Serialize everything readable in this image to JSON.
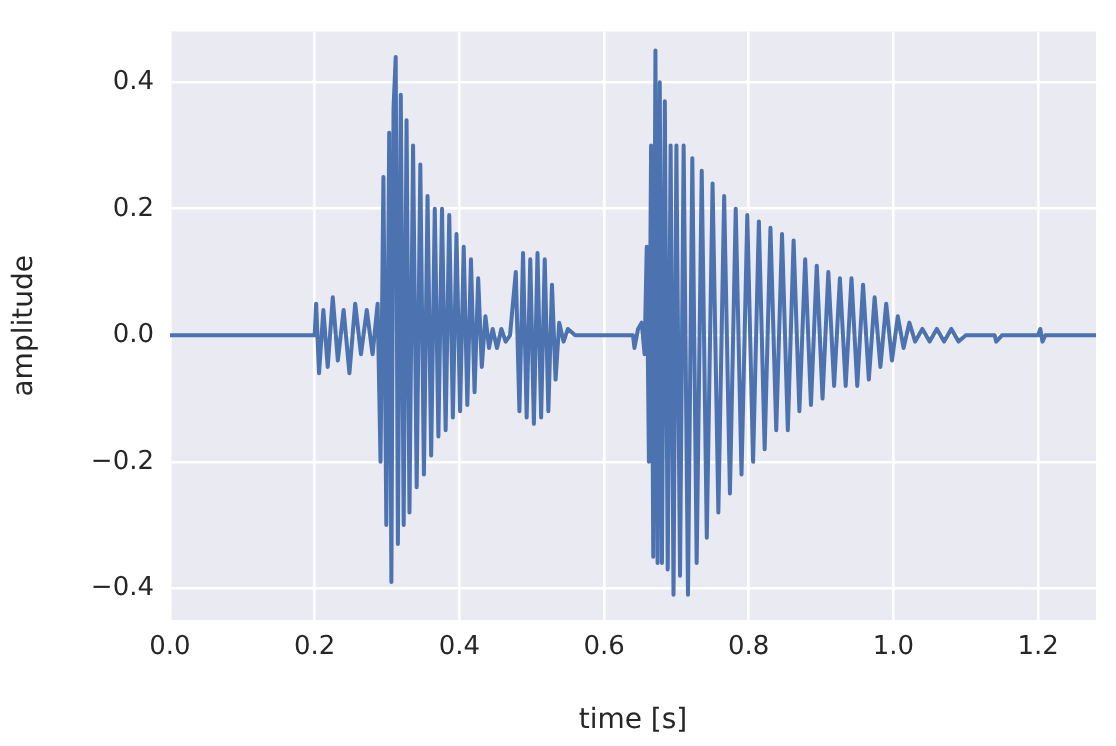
{
  "chart_data": {
    "type": "line",
    "xlabel": "time [s]",
    "ylabel": "amplitude",
    "color": "#4c72b0",
    "grid": true,
    "legend": false,
    "marker": "none",
    "line_style": "solid",
    "xlim": [
      0,
      1.28
    ],
    "ylim": [
      -0.45,
      0.48
    ],
    "xticks": [
      {
        "value": 0,
        "label": "0.0"
      },
      {
        "value": 0.2,
        "label": "0.2"
      },
      {
        "value": 0.4,
        "label": "0.4"
      },
      {
        "value": 0.6,
        "label": "0.6"
      },
      {
        "value": 0.8,
        "label": "0.8"
      },
      {
        "value": 1.0,
        "label": "1.0"
      },
      {
        "value": 1.2,
        "label": "1.2"
      }
    ],
    "yticks": [
      {
        "value": -0.4,
        "label": "−0.4"
      },
      {
        "value": -0.2,
        "label": "−0.2"
      },
      {
        "value": 0,
        "label": "0.0"
      },
      {
        "value": 0.2,
        "label": "0.2"
      },
      {
        "value": 0.4,
        "label": "0.4"
      }
    ],
    "x": [
      0,
      0.2,
      0.202,
      0.206,
      0.212,
      0.218,
      0.225,
      0.232,
      0.24,
      0.248,
      0.256,
      0.264,
      0.272,
      0.28,
      0.287,
      0.291,
      0.295,
      0.299,
      0.303,
      0.306,
      0.309,
      0.312,
      0.315,
      0.319,
      0.323,
      0.327,
      0.331,
      0.336,
      0.341,
      0.346,
      0.351,
      0.356,
      0.361,
      0.366,
      0.371,
      0.376,
      0.381,
      0.386,
      0.391,
      0.396,
      0.401,
      0.406,
      0.411,
      0.416,
      0.421,
      0.426,
      0.431,
      0.436,
      0.441,
      0.446,
      0.452,
      0.458,
      0.464,
      0.47,
      0.478,
      0.483,
      0.488,
      0.493,
      0.498,
      0.503,
      0.508,
      0.513,
      0.518,
      0.523,
      0.528,
      0.533,
      0.538,
      0.544,
      0.55,
      0.56,
      0.64,
      0.642,
      0.647,
      0.652,
      0.656,
      0.659,
      0.662,
      0.665,
      0.668,
      0.671,
      0.674,
      0.677,
      0.68,
      0.684,
      0.688,
      0.692,
      0.696,
      0.7,
      0.705,
      0.71,
      0.716,
      0.722,
      0.728,
      0.735,
      0.742,
      0.75,
      0.758,
      0.766,
      0.774,
      0.782,
      0.79,
      0.798,
      0.806,
      0.814,
      0.822,
      0.83,
      0.838,
      0.846,
      0.854,
      0.862,
      0.87,
      0.878,
      0.886,
      0.894,
      0.902,
      0.91,
      0.918,
      0.926,
      0.934,
      0.942,
      0.95,
      0.958,
      0.966,
      0.974,
      0.982,
      0.99,
      0.998,
      1.006,
      1.014,
      1.022,
      1.03,
      1.04,
      1.05,
      1.06,
      1.07,
      1.08,
      1.09,
      1.1,
      1.14,
      1.142,
      1.15,
      1.2,
      1.203,
      1.206,
      1.21,
      1.28
    ],
    "values": [
      0,
      0,
      0.05,
      -0.06,
      0.04,
      -0.05,
      0.06,
      -0.04,
      0.04,
      -0.06,
      0.05,
      -0.03,
      0.04,
      -0.03,
      0.05,
      -0.2,
      0.25,
      -0.3,
      0.32,
      -0.39,
      0.36,
      0.44,
      -0.33,
      0.38,
      -0.3,
      0.34,
      -0.28,
      0.3,
      -0.24,
      0.27,
      -0.22,
      0.22,
      -0.19,
      0.2,
      -0.16,
      0.2,
      -0.15,
      0.19,
      -0.13,
      0.16,
      -0.12,
      0.14,
      -0.11,
      0.12,
      -0.09,
      0.09,
      -0.05,
      0.03,
      -0.02,
      0.01,
      -0.02,
      0.01,
      -0.01,
      0,
      0.1,
      -0.12,
      0.13,
      -0.13,
      0.12,
      -0.14,
      0.13,
      -0.13,
      0.12,
      -0.12,
      0.08,
      -0.07,
      0.02,
      -0.01,
      0.01,
      0,
      0,
      -0.02,
      0.01,
      0.02,
      -0.03,
      0.14,
      -0.2,
      0.3,
      -0.35,
      0.45,
      -0.36,
      0.4,
      -0.36,
      0.37,
      -0.37,
      0.3,
      -0.41,
      0.3,
      -0.38,
      0.3,
      -0.41,
      0.28,
      -0.36,
      0.26,
      -0.32,
      0.24,
      -0.28,
      0.22,
      -0.25,
      0.2,
      -0.22,
      0.19,
      -0.2,
      0.18,
      -0.18,
      0.17,
      -0.15,
      0.16,
      -0.15,
      0.15,
      -0.12,
      0.12,
      -0.11,
      0.11,
      -0.1,
      0.1,
      -0.08,
      0.09,
      -0.08,
      0.09,
      -0.08,
      0.08,
      -0.07,
      0.06,
      -0.05,
      0.05,
      -0.04,
      0.03,
      -0.02,
      0.02,
      -0.01,
      0.01,
      -0.01,
      0.01,
      -0.01,
      0.01,
      -0.01,
      0,
      0,
      -0.01,
      0,
      0,
      0.01,
      -0.01,
      0,
      0
    ]
  }
}
